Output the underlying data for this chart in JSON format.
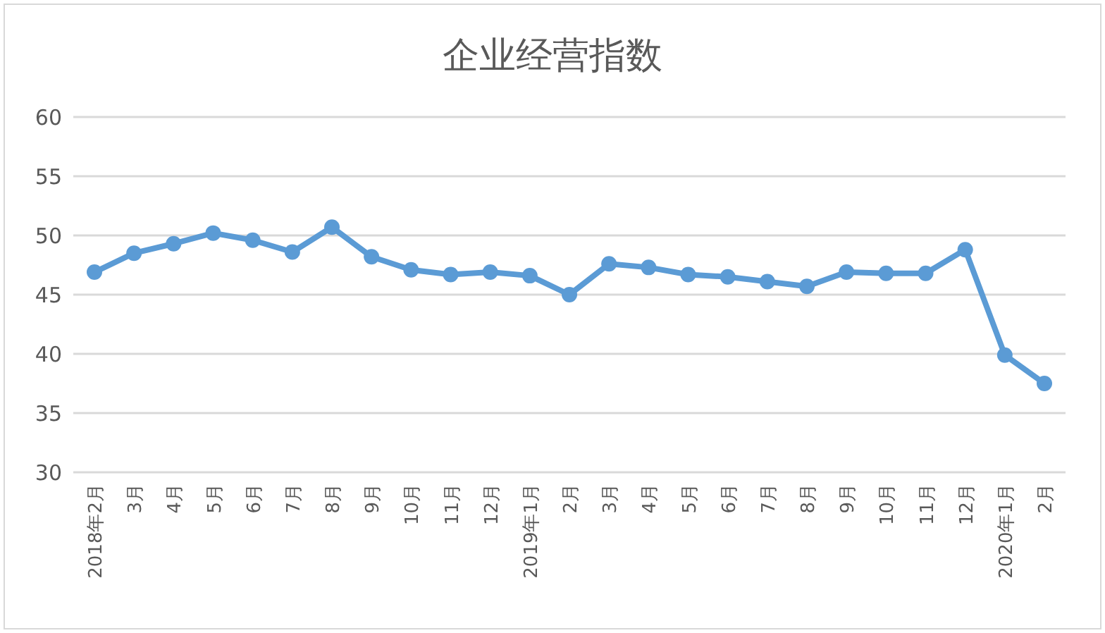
{
  "chart_data": {
    "type": "line",
    "title": "企业经营指数",
    "categories": [
      "2018年2月",
      "3月",
      "4月",
      "5月",
      "6月",
      "7月",
      "8月",
      "9月",
      "10月",
      "11月",
      "12月",
      "2019年1月",
      "2月",
      "3月",
      "4月",
      "5月",
      "6月",
      "7月",
      "8月",
      "9月",
      "10月",
      "11月",
      "12月",
      "2020年1月",
      "2月"
    ],
    "series": [
      {
        "color": "#5b9bd5",
        "values": [
          46.9,
          48.5,
          49.3,
          50.2,
          49.6,
          48.6,
          50.7,
          48.2,
          47.1,
          46.7,
          46.9,
          46.6,
          45.0,
          47.6,
          47.3,
          46.7,
          46.5,
          46.1,
          45.7,
          46.9,
          46.8,
          46.8,
          48.8,
          39.9,
          37.5
        ]
      }
    ],
    "ylim": [
      30,
      60
    ],
    "yticks": [
      30,
      35,
      40,
      45,
      50,
      55,
      60
    ],
    "grid": "y",
    "marker": "circle",
    "line_style": "solid"
  }
}
